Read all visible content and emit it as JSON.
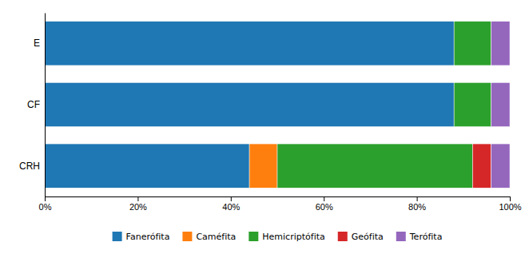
{
  "chart_data": {
    "type": "bar",
    "orientation": "horizontal",
    "stacked": true,
    "categories": [
      "CRH",
      "CF",
      "E"
    ],
    "series": [
      {
        "name": "Fanerófita",
        "values": [
          44.0,
          88.0,
          88.0
        ]
      },
      {
        "name": "Caméfita",
        "values": [
          6.0,
          0.0,
          0.0
        ]
      },
      {
        "name": "Hemicriptófita",
        "values": [
          42.0,
          8.0,
          8.0
        ]
      },
      {
        "name": "Geófita",
        "values": [
          4.0,
          0.0,
          0.0
        ]
      },
      {
        "name": "Terófita",
        "values": [
          4.0,
          4.0,
          4.0
        ]
      }
    ],
    "xlim": [
      0,
      100
    ],
    "xticks": [
      {
        "value": 0,
        "label": "0%"
      },
      {
        "value": 20,
        "label": "20%"
      },
      {
        "value": 40,
        "label": "40%"
      },
      {
        "value": 60,
        "label": "60%"
      },
      {
        "value": 80,
        "label": "80%"
      },
      {
        "value": 100,
        "label": "100%"
      }
    ],
    "grid": false,
    "legend": "bottom"
  }
}
